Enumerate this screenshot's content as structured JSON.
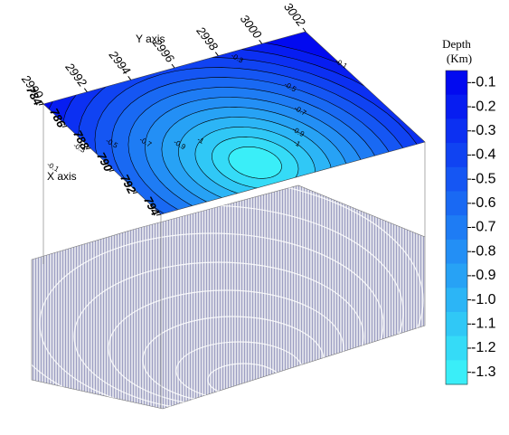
{
  "chart_data": {
    "type": "surface3d",
    "ylabel": "Y axis",
    "xlabel": "X axis",
    "yticks": [
      2990,
      2992,
      2994,
      2996,
      2998,
      3000,
      3002
    ],
    "xticks": [
      784,
      786,
      788,
      790,
      792,
      794
    ],
    "ylim": [
      2990,
      3002
    ],
    "xlim": [
      784,
      794
    ],
    "colorbar_title": "Depth",
    "colorbar_unit": "(Km)",
    "clim": [
      -1.35,
      -0.05
    ],
    "colormap": [
      "#0000f0",
      "#3cf8f8"
    ],
    "cticks": [
      -0.1,
      -0.2,
      -0.3,
      -0.4,
      -0.5,
      -0.6,
      -0.7,
      -0.8,
      -0.9,
      {
        "value": -1.0,
        "label": "-1.0"
      },
      -1.1,
      -1.2,
      -1.3
    ],
    "contour_labels": [
      -0.1,
      -0.3,
      -0.5,
      -0.7,
      -0.9,
      -1,
      -0.3,
      -0.5,
      -0.7,
      -0.9,
      -1,
      -0.1
    ]
  }
}
